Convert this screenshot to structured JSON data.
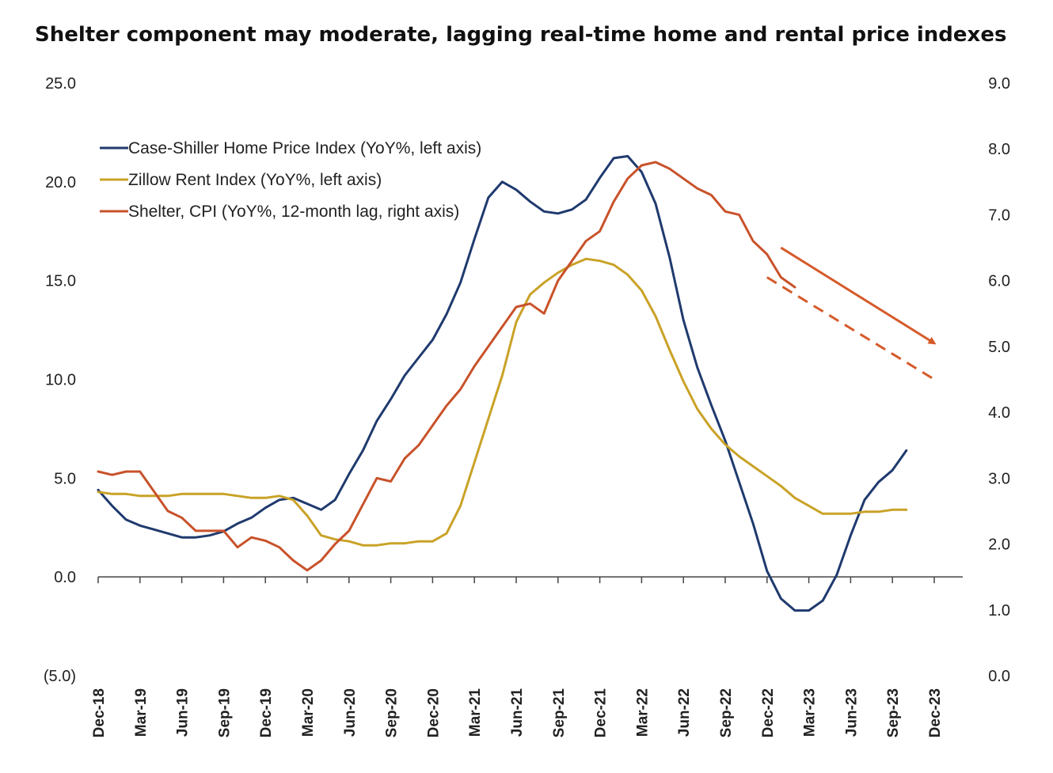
{
  "chart_data": {
    "type": "line",
    "title": "Shelter component may moderate, lagging real-time home and rental price indexes",
    "x_tick_labels": [
      "Dec-18",
      "Mar-19",
      "Jun-19",
      "Sep-19",
      "Dec-19",
      "Mar-20",
      "Jun-20",
      "Sep-20",
      "Dec-20",
      "Mar-21",
      "Jun-21",
      "Sep-21",
      "Dec-21",
      "Mar-22",
      "Jun-22",
      "Sep-22",
      "Dec-22",
      "Mar-23",
      "Jun-23",
      "Sep-23",
      "Dec-23"
    ],
    "x_start": "2018-12",
    "left_axis": {
      "ylim": [
        -5,
        25
      ],
      "tick_labels": [
        "(5.0)",
        "0.0",
        "5.0",
        "10.0",
        "15.0",
        "20.0",
        "25.0"
      ],
      "tick_values": [
        -5,
        0,
        5,
        10,
        15,
        20,
        25
      ]
    },
    "right_axis": {
      "ylim": [
        0,
        9
      ],
      "tick_labels": [
        "0.0",
        "1.0",
        "2.0",
        "3.0",
        "4.0",
        "5.0",
        "6.0",
        "7.0",
        "8.0",
        "9.0"
      ],
      "tick_values": [
        0,
        1,
        2,
        3,
        4,
        5,
        6,
        7,
        8,
        9
      ]
    },
    "legend_position": "top-left",
    "series": [
      {
        "name": "Case-Shiller Home Price Index (YoY%, left axis)",
        "axis": "left",
        "color": "#1f3a6e",
        "values": [
          4.4,
          3.6,
          2.9,
          2.6,
          2.4,
          2.2,
          2.0,
          2.0,
          2.1,
          2.3,
          2.7,
          3.0,
          3.5,
          3.9,
          4.0,
          3.7,
          3.4,
          3.9,
          5.2,
          6.4,
          7.9,
          9.0,
          10.2,
          11.1,
          12.0,
          13.3,
          14.9,
          17.1,
          19.2,
          20.0,
          19.6,
          19.0,
          18.5,
          18.4,
          18.6,
          19.1,
          20.2,
          21.2,
          21.3,
          20.5,
          18.9,
          16.2,
          13.0,
          10.6,
          8.7,
          6.9,
          4.8,
          2.7,
          0.3,
          -1.1,
          -1.7,
          -1.7,
          -1.2,
          0.1,
          2.1,
          3.9,
          4.8,
          5.4,
          6.4
        ]
      },
      {
        "name": "Zillow Rent Index (YoY%, left axis)",
        "axis": "left",
        "color": "#c9a227",
        "values": [
          4.3,
          4.2,
          4.2,
          4.1,
          4.1,
          4.1,
          4.2,
          4.2,
          4.2,
          4.2,
          4.1,
          4.0,
          4.0,
          4.1,
          3.9,
          3.1,
          2.1,
          1.9,
          1.8,
          1.6,
          1.6,
          1.7,
          1.7,
          1.8,
          1.8,
          2.2,
          3.6,
          5.8,
          8.0,
          10.2,
          12.9,
          14.3,
          14.9,
          15.4,
          15.8,
          16.1,
          16.0,
          15.8,
          15.3,
          14.5,
          13.2,
          11.5,
          9.9,
          8.5,
          7.5,
          6.7,
          6.1,
          5.6,
          5.1,
          4.6,
          4.0,
          3.6,
          3.2,
          3.2,
          3.2,
          3.3,
          3.3,
          3.4,
          3.4
        ]
      },
      {
        "name": "Shelter, CPI (YoY%, 12-month lag, right axis)",
        "axis": "right",
        "color": "#c8522a",
        "values": [
          3.1,
          3.05,
          3.1,
          3.1,
          2.8,
          2.5,
          2.4,
          2.2,
          2.2,
          2.2,
          1.95,
          2.1,
          2.05,
          1.95,
          1.75,
          1.6,
          1.75,
          2.0,
          2.2,
          2.6,
          3.0,
          2.95,
          3.3,
          3.5,
          3.8,
          4.1,
          4.35,
          4.7,
          5.0,
          5.3,
          5.6,
          5.65,
          5.5,
          6.0,
          6.3,
          6.6,
          6.75,
          7.2,
          7.55,
          7.75,
          7.8,
          7.7,
          7.55,
          7.4,
          7.3,
          7.05,
          7.0,
          6.6,
          6.4,
          6.05,
          5.9
        ]
      }
    ],
    "projection": {
      "axis": "right",
      "color": "#d55a2a",
      "style": "dashed",
      "from_x": "2022-12",
      "from_value": 6.05,
      "to_x": "2023-12",
      "to_value": 4.5
    },
    "trend_arrow": {
      "axis": "right",
      "color": "#d55a2a",
      "from_x": "2023-01",
      "from_value": 6.5,
      "to_x": "2023-12",
      "to_value": 5.05
    }
  }
}
